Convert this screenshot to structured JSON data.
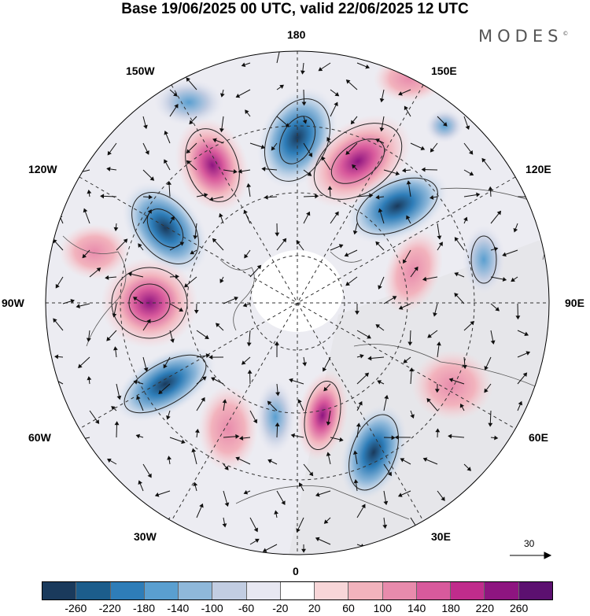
{
  "title": "Base 19/06/2025 00 UTC, valid 22/06/2025 12 UTC",
  "brand": "MODES",
  "brand_mark": "©",
  "longitude_labels": {
    "n": "180",
    "s": "0",
    "e": "90E",
    "w": "90W",
    "e150": "150E",
    "e120": "120E",
    "e60": "60E",
    "e30": "30E",
    "w150": "150W",
    "w120": "120W",
    "w60": "60W",
    "w30": "30W"
  },
  "wind_reference": "30",
  "colorbar": {
    "colors": [
      "#1a3a5c",
      "#1c5d8c",
      "#2e7db8",
      "#5a9fd0",
      "#8fb8da",
      "#c2cde2",
      "#e8e8f2",
      "#ffffff",
      "#f8d6d8",
      "#f2b3bd",
      "#e88bac",
      "#d85a9c",
      "#c02c8c",
      "#8e1580",
      "#5c1070"
    ],
    "ticks": [
      "-260",
      "-220",
      "-180",
      "-140",
      "-100",
      "-60",
      "-20",
      "20",
      "60",
      "100",
      "140",
      "180",
      "220",
      "260"
    ]
  },
  "map": {
    "projection": "north-polar-stereographic",
    "field": "geopotential anomaly",
    "wind_vectors": true,
    "gridlines": "dashed",
    "coastlines": true
  }
}
